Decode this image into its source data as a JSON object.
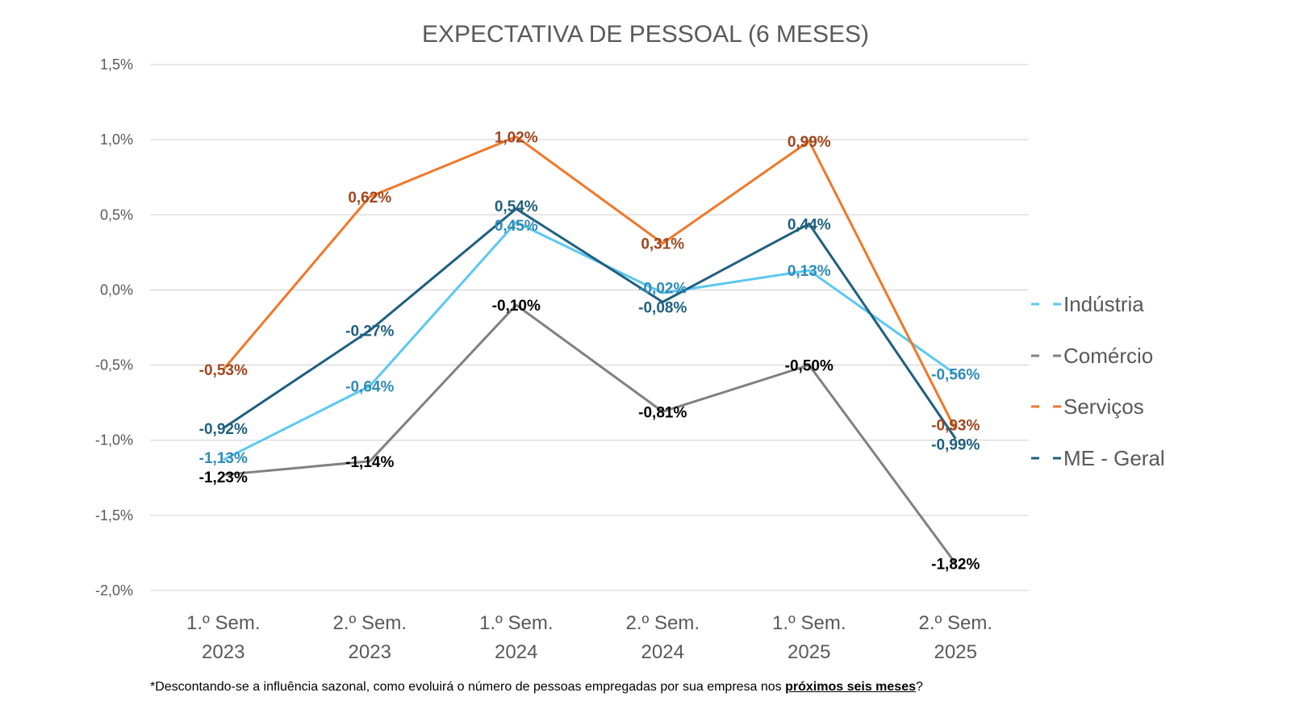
{
  "chart_data": {
    "type": "line",
    "title": "EXPECTATIVA DE PESSOAL (6 MESES)",
    "categories": [
      [
        "1.º Sem.",
        "2023"
      ],
      [
        "2.º Sem.",
        "2023"
      ],
      [
        "1.º Sem.",
        "2024"
      ],
      [
        "2.º Sem.",
        "2024"
      ],
      [
        "1.º Sem.",
        "2025"
      ],
      [
        "2.º Sem.",
        "2025"
      ]
    ],
    "ylim": [
      -2.0,
      1.5
    ],
    "yticks": [
      1.5,
      1.0,
      0.5,
      0.0,
      -0.5,
      -1.0,
      -1.5,
      -2.0
    ],
    "ytick_labels": [
      "1,5%",
      "1,0%",
      "0,5%",
      "0,0%",
      "-0,5%",
      "-1,0%",
      "-1,5%",
      "-2,0%"
    ],
    "grid": true,
    "legend_position": "right",
    "series": [
      {
        "name": "Indústria",
        "color": "#5BC8F0",
        "label_color": "#2E8BB8",
        "values": [
          -1.13,
          -0.64,
          0.45,
          -0.02,
          0.13,
          -0.56
        ],
        "labels": [
          "-1,13%",
          "-0,64%",
          "0,45%",
          "-0,02%",
          "0,13%",
          "-0,56%"
        ]
      },
      {
        "name": "Comércio",
        "color": "#808080",
        "label_color": "#000000",
        "values": [
          -1.23,
          -1.14,
          -0.1,
          -0.81,
          -0.5,
          -1.82
        ],
        "labels": [
          "-1,23%",
          "-1,14%",
          "-0,10%",
          "-0,81%",
          "-0,50%",
          "-1,82%"
        ]
      },
      {
        "name": "Serviços",
        "color": "#F07828",
        "label_color": "#A0461E",
        "values": [
          -0.53,
          0.62,
          1.02,
          0.31,
          0.99,
          -0.93
        ],
        "labels": [
          "-0,53%",
          "0,62%",
          "1,02%",
          "0,31%",
          "0,99%",
          "-0,93%"
        ]
      },
      {
        "name": "ME - Geral",
        "color": "#1F5F80",
        "label_color": "#1F5F80",
        "values": [
          -0.92,
          -0.27,
          0.54,
          -0.08,
          0.44,
          -0.99
        ],
        "labels": [
          "-0,92%",
          "-0,27%",
          "0,54%",
          "-0,08%",
          "0,44%",
          "-0,99%"
        ]
      }
    ]
  },
  "footnote": {
    "text": "*Descontando-se a influência sazonal, como evoluirá o número de pessoas empregadas por sua empresa nos ",
    "bold": "próximos seis meses",
    "end": "?"
  }
}
